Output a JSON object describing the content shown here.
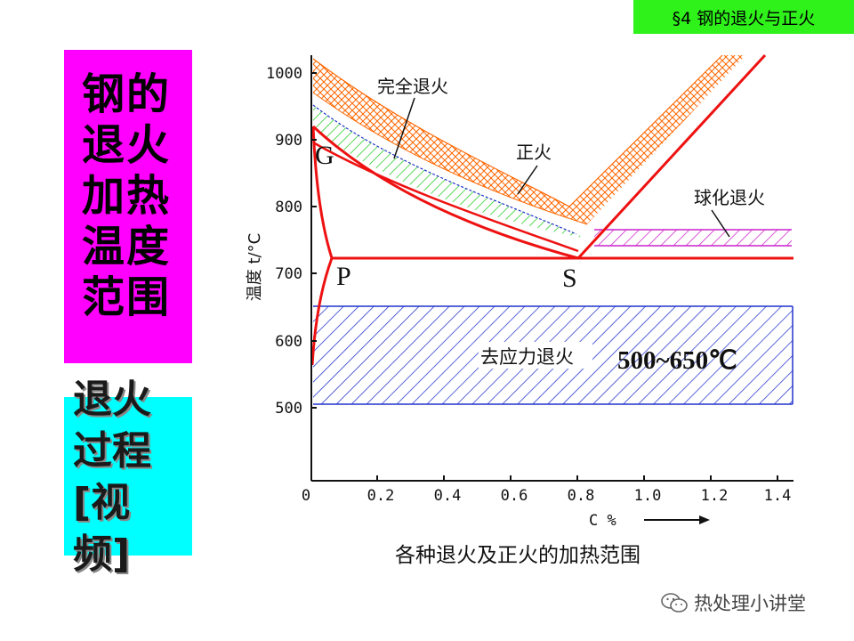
{
  "header": {
    "tag": "§4 钢的退火与正火"
  },
  "left_panel": {
    "title_lines": [
      "钢的",
      "退火",
      "加热",
      "温度",
      "范围"
    ],
    "video_lines": [
      "退火",
      "过程",
      "[视",
      "频]"
    ]
  },
  "diagram": {
    "caption": "各种退火及正火的加热范围",
    "y_label": "温度 t/°C",
    "x_label": "C %",
    "y_ticks": [
      "1000",
      "900",
      "800",
      "700",
      "600",
      "500"
    ],
    "x_ticks": [
      "0",
      "0.2",
      "0.4",
      "0.6",
      "0.8",
      "1.0",
      "1.2",
      "1.4"
    ],
    "points": {
      "G": "G",
      "P": "P",
      "S": "S"
    },
    "regions": {
      "full_anneal": "完全退火",
      "normalize": "正火",
      "spheroidize": "球化退火",
      "stress_relief": "去应力退火",
      "stress_relief_range": "500~650℃"
    },
    "colors": {
      "phase_line": "#ee1111",
      "full_anneal_hatch": "#22cc22",
      "normalize_hatch": "#ff6600",
      "blue_hatch": "#2233cc",
      "spheroidize_hatch": "#cc22cc"
    }
  },
  "watermark": {
    "text": "热处理小讲堂",
    "icon": "wechat-icon"
  }
}
